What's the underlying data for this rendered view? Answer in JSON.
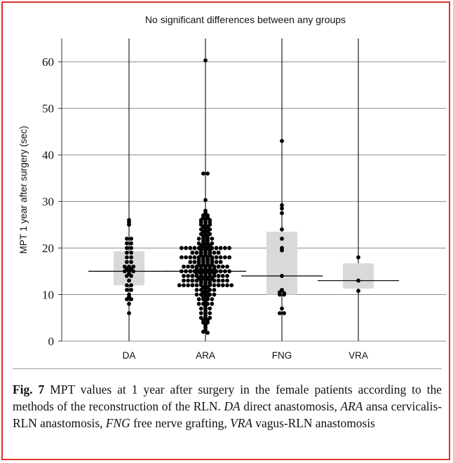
{
  "chart_data": {
    "type": "scatter",
    "subtype": "dot-strip with IQR boxes and median lines",
    "title": "No significant differences between any groups",
    "ylabel": "MPT 1 year after surgery (sec)",
    "xlabel": "",
    "ylim": [
      0,
      65
    ],
    "yticks": [
      0,
      10,
      20,
      30,
      40,
      50,
      60
    ],
    "grid": true,
    "categories": [
      "DA",
      "ARA",
      "FNG",
      "VRA"
    ],
    "colors": {
      "dots": "#000000",
      "box": "#d9d9d9",
      "grid": "#888888",
      "frame": "#e0302a"
    },
    "groups": [
      {
        "name": "DA",
        "median": 15,
        "q1": 12,
        "q3": 19.3,
        "values": [
          26,
          25.5,
          25,
          22,
          22,
          21,
          21,
          20,
          20,
          19,
          19,
          18,
          18,
          17,
          17,
          16,
          16,
          16,
          15.5,
          15.5,
          15,
          15,
          15,
          14.5,
          14,
          14,
          13,
          12,
          12,
          11,
          11,
          10,
          9.5,
          9,
          9,
          8,
          6
        ]
      },
      {
        "name": "ARA",
        "median": 15,
        "q1": 12,
        "q3": 20,
        "values": [
          60.3,
          36,
          36,
          30.3,
          28,
          27.5,
          27,
          27,
          26.5,
          26.5,
          26,
          26,
          26,
          25.5,
          25.5,
          25.5,
          25,
          25,
          25,
          24.5,
          24.5,
          24,
          24,
          24,
          23.5,
          23.5,
          23,
          23,
          23,
          22.5,
          22.5,
          22,
          22,
          22,
          22,
          21.5,
          21.5,
          21,
          21,
          21,
          21,
          20.5,
          20.5,
          20.5,
          20,
          20,
          20,
          20,
          20,
          20,
          20,
          20,
          20,
          20,
          20,
          20,
          19.5,
          19.5,
          19.5,
          19,
          19,
          19,
          19,
          19,
          19,
          19,
          18.5,
          18.5,
          18.5,
          18,
          18,
          18,
          18,
          18,
          18,
          18,
          18,
          18,
          18,
          18,
          18,
          17.5,
          17.5,
          17.5,
          17.5,
          17,
          17,
          17,
          17,
          17,
          17,
          17,
          17,
          16.5,
          16.5,
          16.5,
          16.5,
          16,
          16,
          16,
          16,
          16,
          16,
          16,
          16,
          16,
          16,
          16,
          15.5,
          15.5,
          15.5,
          15.5,
          15.5,
          15,
          15,
          15,
          15,
          15,
          15,
          15,
          15,
          15,
          15,
          15,
          15,
          14.5,
          14.5,
          14.5,
          14.5,
          14.5,
          14,
          14,
          14,
          14,
          14,
          14,
          14,
          14,
          14,
          14,
          14,
          13.5,
          13.5,
          13.5,
          13.5,
          13,
          13,
          13,
          13,
          13,
          13,
          13,
          13,
          13,
          13,
          13,
          12.5,
          12.5,
          12.5,
          12,
          12,
          12,
          12,
          12,
          12,
          12,
          12,
          12,
          12,
          12,
          12,
          12,
          11.5,
          11.5,
          11,
          11,
          11,
          11,
          11,
          10.5,
          10.5,
          10,
          10,
          10,
          10,
          10,
          9.5,
          9.5,
          9,
          9,
          9,
          9,
          8.5,
          8,
          8,
          8,
          8,
          7.5,
          7,
          7,
          7,
          6.5,
          6,
          6,
          6,
          5.5,
          5,
          5,
          5,
          4.5,
          4.5,
          4,
          4,
          3.5,
          3,
          2.5,
          2,
          1.8
        ]
      },
      {
        "name": "FNG",
        "median": 14,
        "q1": 10,
        "q3": 23.5,
        "values": [
          43,
          29.2,
          28.5,
          27.5,
          24,
          22,
          20,
          19.5,
          14,
          11,
          10.5,
          10,
          10.3,
          10,
          7,
          6,
          6
        ]
      },
      {
        "name": "VRA",
        "median": 13,
        "q1": 11.3,
        "q3": 16.7,
        "values": [
          18,
          13,
          10.8
        ]
      }
    ]
  },
  "caption": {
    "label": "Fig. 7",
    "text_parts": [
      {
        "t": "  MPT values at 1 year after surgery in the female patients according to the methods of the reconstruction of the RLN. ",
        "i": false
      },
      {
        "t": "DA",
        "i": true
      },
      {
        "t": " direct anastomosis, ",
        "i": false
      },
      {
        "t": "ARA",
        "i": true
      },
      {
        "t": " ansa cervicalis-RLN anastomosis, ",
        "i": false
      },
      {
        "t": "FNG",
        "i": true
      },
      {
        "t": " free nerve grafting, ",
        "i": false
      },
      {
        "t": "VRA",
        "i": true
      },
      {
        "t": " vagus-RLN anastomosis",
        "i": false
      }
    ]
  }
}
